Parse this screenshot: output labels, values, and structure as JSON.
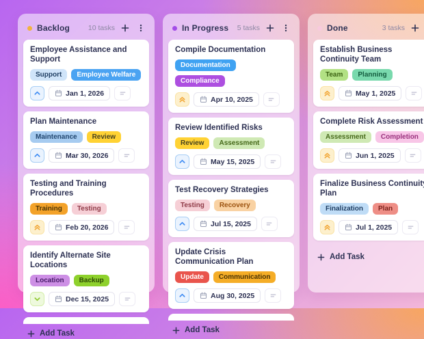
{
  "board": {
    "columns": [
      {
        "name": "Backlog",
        "count": "10 tasks",
        "dot_color": "#f2b33d",
        "add_task_label": "Add Task",
        "has_partial_card": true,
        "tasks": [
          {
            "title": "Employee Assistance and Support",
            "tags": [
              {
                "label": "Support",
                "bg": "#cfe4f9",
                "fg": "#1f3e63"
              },
              {
                "label": "Employee Welfare",
                "bg": "#4aa3f2",
                "fg": "#ffffff"
              }
            ],
            "priority": "high",
            "due_date": "Jan 1, 2026"
          },
          {
            "title": "Plan Maintenance",
            "tags": [
              {
                "label": "Maintenance",
                "bg": "#a6cbf0",
                "fg": "#20456e"
              },
              {
                "label": "Review",
                "bg": "#ffd234",
                "fg": "#45411f"
              }
            ],
            "priority": "high",
            "due_date": "Mar 30, 2026"
          },
          {
            "title": "Testing and Training Procedures",
            "tags": [
              {
                "label": "Training",
                "bg": "#f3a229",
                "fg": "#4a3304"
              },
              {
                "label": "Testing",
                "bg": "#f6cfd6",
                "fg": "#8f3a47"
              }
            ],
            "priority": "urgent",
            "due_date": "Feb 20, 2026"
          },
          {
            "title": "Identify Alternate Site Locations",
            "tags": [
              {
                "label": "Location",
                "bg": "#cd8fe5",
                "fg": "#461a68"
              },
              {
                "label": "Backup",
                "bg": "#8ed12c",
                "fg": "#2e4a05"
              }
            ],
            "priority": "low",
            "due_date": "Dec 15, 2025"
          }
        ]
      },
      {
        "name": "In Progress",
        "count": "5 tasks",
        "dot_color": "#a34de8",
        "add_task_label": "Add Task",
        "has_partial_card": true,
        "tasks": [
          {
            "title": "Compile Documentation",
            "tags": [
              {
                "label": "Documentation",
                "bg": "#3fa2f2",
                "fg": "#ffffff"
              },
              {
                "label": "Compliance",
                "bg": "#ad4fe0",
                "fg": "#ffffff"
              }
            ],
            "priority": "urgent",
            "due_date": "Apr 10, 2025"
          },
          {
            "title": "Review Identified Risks",
            "tags": [
              {
                "label": "Review",
                "bg": "#ffd234",
                "fg": "#45411f"
              },
              {
                "label": "Assessment",
                "bg": "#cfe9b4",
                "fg": "#46691a"
              }
            ],
            "priority": "high",
            "due_date": "May 15, 2025"
          },
          {
            "title": "Test Recovery Strategies",
            "tags": [
              {
                "label": "Testing",
                "bg": "#f6cfd6",
                "fg": "#8f3a47"
              },
              {
                "label": "Recovery",
                "bg": "#f9d2a3",
                "fg": "#9c5310"
              }
            ],
            "priority": "high",
            "due_date": "Jul 15, 2025"
          },
          {
            "title": "Update Crisis Communication Plan",
            "tags": [
              {
                "label": "Update",
                "bg": "#e9544c",
                "fg": "#ffffff"
              },
              {
                "label": "Communication",
                "bg": "#f5ad27",
                "fg": "#4a3304"
              }
            ],
            "priority": "high",
            "due_date": "Aug 30, 2025"
          }
        ]
      },
      {
        "name": "Done",
        "count": "3 tasks",
        "dot_color": "#f8cade",
        "add_task_label": "Add Task",
        "has_partial_card": false,
        "tasks": [
          {
            "title": "Establish Business Continuity Team",
            "tags": [
              {
                "label": "Team",
                "bg": "#b2e184",
                "fg": "#3b6212"
              },
              {
                "label": "Planning",
                "bg": "#79d9ad",
                "fg": "#135c3e"
              }
            ],
            "priority": "urgent",
            "due_date": "May 1, 2025"
          },
          {
            "title": "Complete Risk Assessment",
            "tags": [
              {
                "label": "Assessment",
                "bg": "#cfe9b4",
                "fg": "#46691a"
              },
              {
                "label": "Completion",
                "bg": "#f8c6e7",
                "fg": "#99307c"
              }
            ],
            "priority": "urgent",
            "due_date": "Jun 1, 2025"
          },
          {
            "title": "Finalize Business Continuity Plan",
            "tags": [
              {
                "label": "Finalization",
                "bg": "#bfdcf6",
                "fg": "#1f3e63"
              },
              {
                "label": "Plan",
                "bg": "#ee8e86",
                "fg": "#7c221c"
              }
            ],
            "priority": "urgent",
            "due_date": "Jul 1, 2025"
          }
        ]
      }
    ]
  }
}
